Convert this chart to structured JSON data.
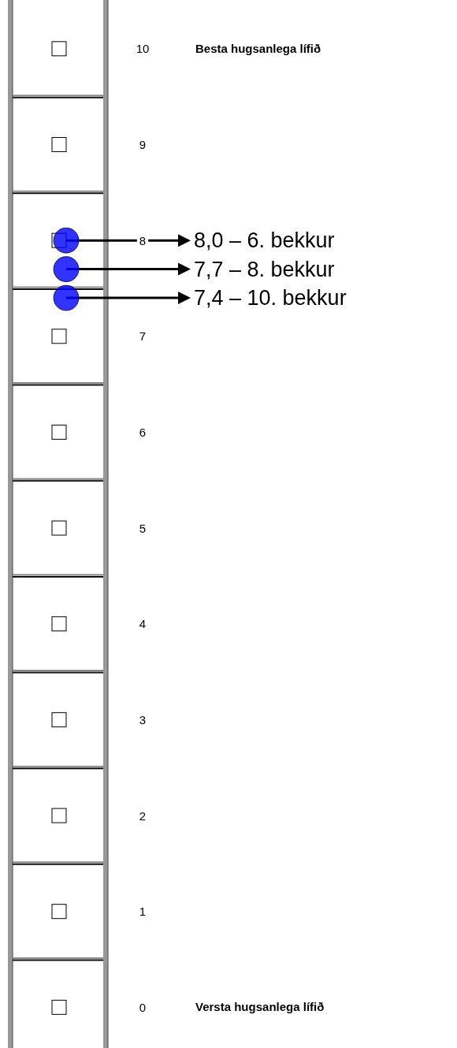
{
  "chart_data": {
    "type": "scatter",
    "categories": [
      null
    ],
    "ylim": [
      -0.4,
      10.5
    ],
    "yticks": [
      0,
      1,
      2,
      3,
      4,
      5,
      6,
      7,
      8,
      9,
      10
    ],
    "tick_labels": "y",
    "marker": "circle",
    "grid": false,
    "annotations": [
      "Besta hugsanlega lífið",
      "8,0 – 6. bekkur",
      "7,7 – 8. bekkur",
      "7,4 – 10. bekkur",
      "Versta hugsanlega lífið"
    ],
    "series": [
      {
        "color": "#0000ff",
        "values": [
          8.0
        ]
      },
      {
        "color": "#0000ff",
        "values": [
          7.7
        ]
      },
      {
        "color": "#0000ff",
        "values": [
          7.4
        ]
      }
    ]
  }
}
